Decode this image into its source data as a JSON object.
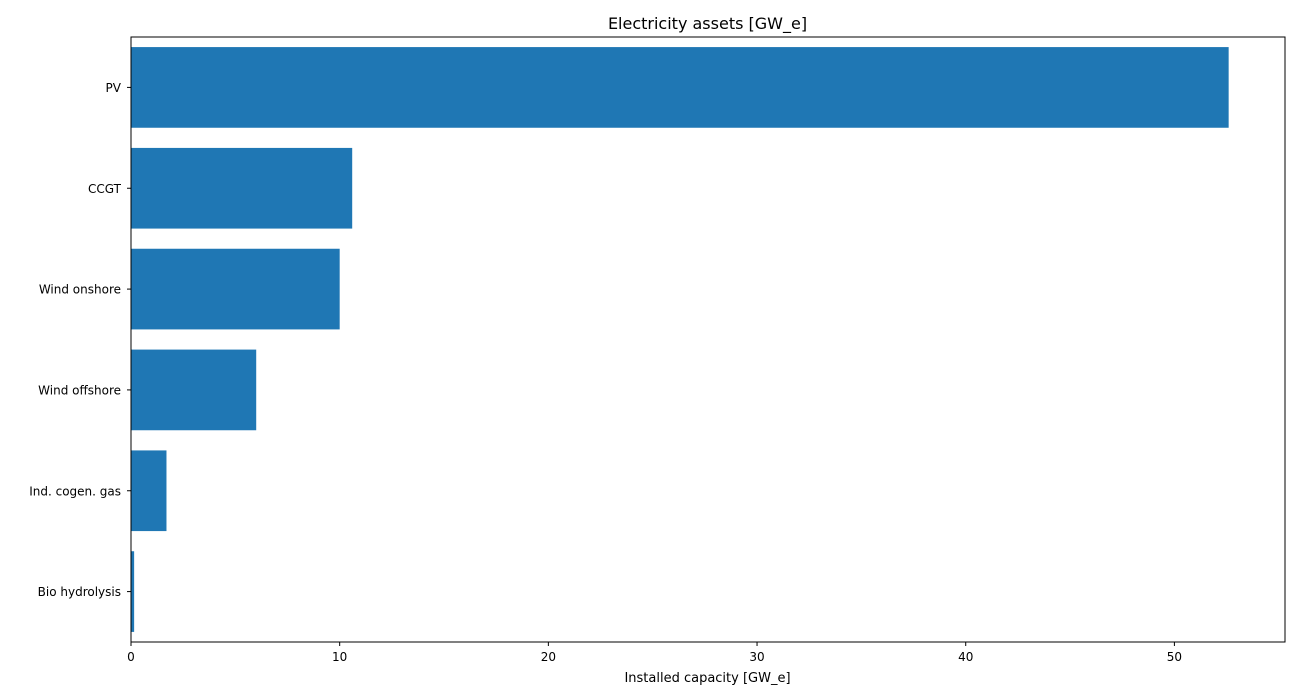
{
  "chart_data": {
    "type": "bar",
    "orientation": "horizontal",
    "title": "Electricity assets [GW_e]",
    "xlabel": "Installed capacity [GW_e]",
    "ylabel": "",
    "categories": [
      "PV",
      "CCGT",
      "Wind onshore",
      "Wind offshore",
      "Ind. cogen. gas",
      "Bio hydrolysis"
    ],
    "values": [
      52.6,
      10.6,
      10.0,
      6.0,
      1.7,
      0.15
    ],
    "xlim": [
      0,
      55.3
    ],
    "xticks": [
      0,
      10,
      20,
      30,
      40,
      50
    ],
    "xtick_labels": [
      "0",
      "10",
      "20",
      "30",
      "40",
      "50"
    ],
    "grid": false,
    "colors": {
      "bar": "#1f77b4",
      "axis": "#000000",
      "text": "#000000"
    }
  }
}
